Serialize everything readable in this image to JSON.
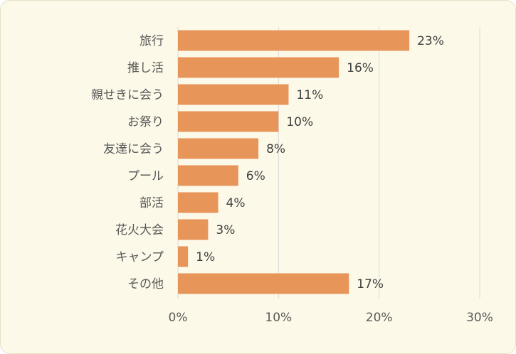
{
  "chart_data": {
    "type": "bar",
    "orientation": "horizontal",
    "categories": [
      "旅行",
      "推し活",
      "親せきに会う",
      "お祭り",
      "友達に会う",
      "プール",
      "部活",
      "花火大会",
      "キャンプ",
      "その他"
    ],
    "values": [
      23,
      16,
      11,
      10,
      8,
      6,
      4,
      3,
      1,
      17
    ],
    "value_labels": [
      "23%",
      "16%",
      "11%",
      "10%",
      "8%",
      "6%",
      "4%",
      "3%",
      "1%",
      "17%"
    ],
    "xlim": [
      0,
      30
    ],
    "xticks": [
      0,
      10,
      20,
      30
    ],
    "xtick_labels": [
      "0%",
      "10%",
      "20%",
      "30%"
    ],
    "grid": "vertical",
    "legend": "none",
    "colors": {
      "bar": "#e8955a",
      "grid": "#d9d9d9",
      "background": "#fdf9e9"
    }
  }
}
